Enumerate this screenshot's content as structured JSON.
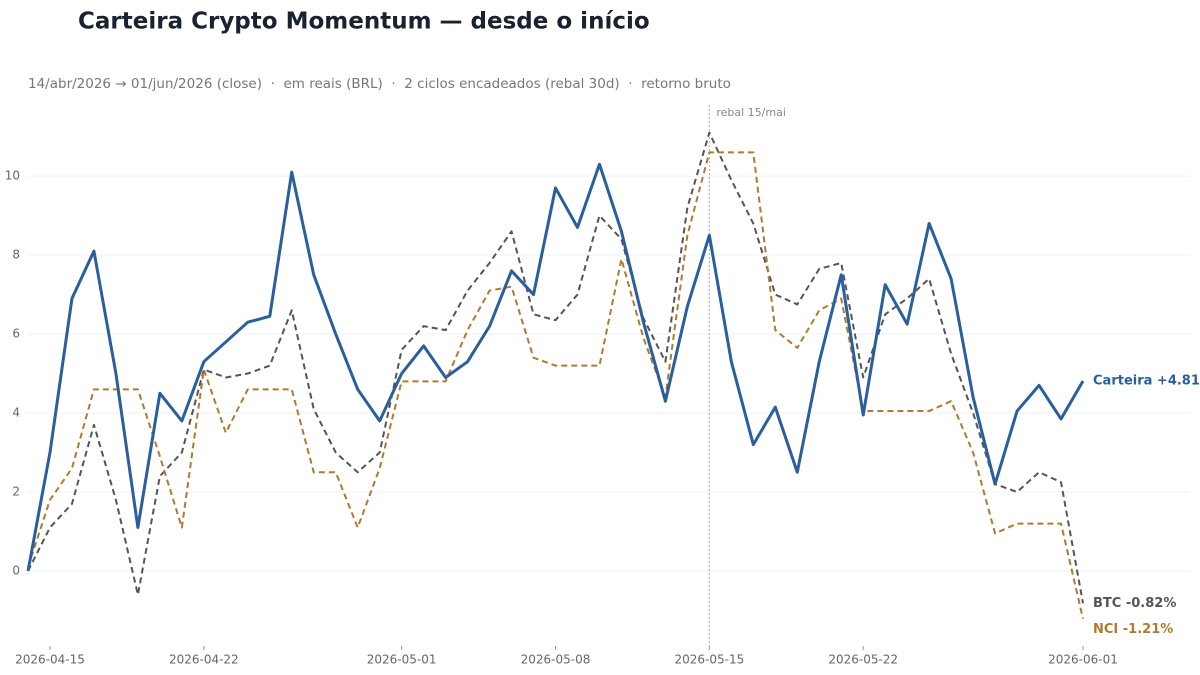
{
  "chart_data": {
    "type": "line",
    "title": "Carteira Crypto Momentum — desde o início",
    "subtitle": "14/abr/2026 → 01/jun/2026 (close)  ·  em reais (BRL)  ·  2 ciclos encadeados (rebal 30d)  ·  retorno bruto",
    "x": [
      "2026-04-14",
      "2026-04-15",
      "2026-04-16",
      "2026-04-17",
      "2026-04-18",
      "2026-04-19",
      "2026-04-20",
      "2026-04-21",
      "2026-04-22",
      "2026-04-23",
      "2026-04-24",
      "2026-04-25",
      "2026-04-26",
      "2026-04-27",
      "2026-04-28",
      "2026-04-29",
      "2026-04-30",
      "2026-05-01",
      "2026-05-02",
      "2026-05-03",
      "2026-05-04",
      "2026-05-05",
      "2026-05-06",
      "2026-05-07",
      "2026-05-08",
      "2026-05-09",
      "2026-05-10",
      "2026-05-11",
      "2026-05-12",
      "2026-05-13",
      "2026-05-14",
      "2026-05-15",
      "2026-05-16",
      "2026-05-17",
      "2026-05-18",
      "2026-05-19",
      "2026-05-20",
      "2026-05-21",
      "2026-05-22",
      "2026-05-23",
      "2026-05-24",
      "2026-05-25",
      "2026-05-26",
      "2026-05-27",
      "2026-05-28",
      "2026-05-29",
      "2026-05-30",
      "2026-05-31",
      "2026-06-01"
    ],
    "xlim": [
      "2026-04-14",
      "2026-06-01"
    ],
    "xticks": [
      "2026-04-15",
      "2026-04-22",
      "2026-05-01",
      "2026-05-08",
      "2026-05-15",
      "2026-05-22",
      "2026-06-01"
    ],
    "ylim": [
      -1.9,
      11.8
    ],
    "yticks": [
      0,
      2,
      4,
      6,
      8,
      10
    ],
    "grid": true,
    "series": [
      {
        "name": "BTC",
        "color": "#555555",
        "dash": true,
        "end_label": "BTC -0.82%",
        "values": [
          0,
          1.1,
          1.7,
          3.7,
          1.8,
          -0.6,
          2.4,
          3.0,
          5.1,
          4.9,
          5.0,
          5.2,
          6.6,
          4.1,
          3.0,
          2.5,
          3.0,
          5.6,
          6.2,
          6.1,
          7.1,
          7.8,
          8.6,
          6.5,
          6.35,
          7.0,
          9.0,
          8.4,
          6.4,
          5.3,
          9.2,
          11.1,
          9.9,
          8.8,
          7.0,
          6.75,
          7.65,
          7.8,
          4.9,
          6.5,
          6.9,
          7.4,
          5.5,
          4.0,
          2.2,
          2.0,
          2.5,
          2.25,
          -0.82
        ]
      },
      {
        "name": "NCI",
        "color": "#b07a30",
        "dash": true,
        "end_label": "NCI -1.21%",
        "values": [
          0.1,
          1.8,
          2.6,
          4.6,
          4.6,
          4.6,
          2.9,
          1.1,
          5.1,
          3.5,
          4.6,
          4.6,
          4.6,
          2.5,
          2.5,
          1.1,
          2.6,
          4.8,
          4.8,
          4.8,
          6.1,
          7.1,
          7.2,
          5.4,
          5.2,
          5.2,
          5.2,
          7.9,
          5.9,
          4.4,
          8.5,
          10.6,
          10.6,
          10.6,
          6.1,
          5.65,
          6.6,
          6.9,
          4.05,
          4.05,
          4.05,
          4.05,
          4.3,
          3.0,
          0.95,
          1.2,
          1.2,
          1.2,
          -1.21
        ]
      },
      {
        "name": "Carteira",
        "color": "#2a5f9e",
        "dash": false,
        "end_label": "Carteira +4.81%",
        "values": [
          0,
          3.0,
          6.9,
          8.1,
          5.0,
          1.1,
          4.5,
          3.8,
          5.3,
          5.8,
          6.3,
          6.45,
          10.1,
          7.5,
          6.0,
          4.6,
          3.8,
          5.0,
          5.7,
          4.9,
          5.3,
          6.2,
          7.6,
          7.0,
          9.7,
          8.7,
          10.3,
          8.6,
          6.3,
          4.3,
          6.7,
          8.5,
          5.3,
          3.2,
          4.15,
          2.5,
          5.3,
          7.5,
          3.95,
          7.25,
          6.25,
          8.8,
          7.4,
          4.4,
          2.2,
          4.05,
          4.7,
          3.85,
          4.81
        ]
      }
    ],
    "annotations": [
      {
        "x": "2026-05-15",
        "text": "rebal 15/mai"
      }
    ]
  }
}
